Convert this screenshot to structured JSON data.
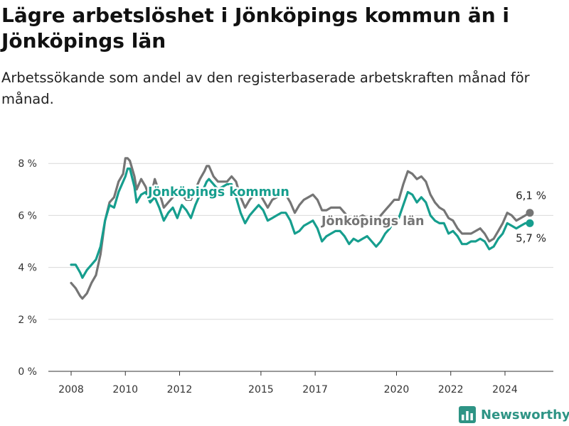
{
  "colors": {
    "kommun": "#169e8e",
    "lan": "#757575",
    "grid": "#d9d9d9",
    "axis": "#333333",
    "brand": "#2e9485"
  },
  "brand": {
    "name": "Newsworthy",
    "icon": "bar-chart-icon"
  },
  "chart_data": {
    "type": "line",
    "title": "Lägre arbetslöshet i Jönköpings kommun än i Jönköpings län",
    "subtitle": "Arbetssökande som andel av den registerbaserade arbetskraften månad för månad.",
    "xlabel": "",
    "ylabel": "",
    "xlim": [
      "2007-06",
      "2025-12"
    ],
    "ylim": [
      0,
      8.5
    ],
    "x_ticks": [
      {
        "date": "2008-01",
        "label": "2008"
      },
      {
        "date": "2010-01",
        "label": "2010"
      },
      {
        "date": "2012-01",
        "label": "2012"
      },
      {
        "date": "2015-01",
        "label": "2015"
      },
      {
        "date": "2017-01",
        "label": "2017"
      },
      {
        "date": "2020-01",
        "label": "2020"
      },
      {
        "date": "2022-01",
        "label": "2022"
      },
      {
        "date": "2024-01",
        "label": "2024"
      }
    ],
    "y_ticks": [
      {
        "value": 0,
        "label": "0 %"
      },
      {
        "value": 2,
        "label": "2 %"
      },
      {
        "value": 4,
        "label": "4 %"
      },
      {
        "value": 6,
        "label": "6 %"
      },
      {
        "value": 8,
        "label": "8 %"
      }
    ],
    "grid": true,
    "legend": "inline",
    "series": [
      {
        "name": "Jönköpings län",
        "label": "Jönköpings län",
        "color": "#757575",
        "end_label": "6,1 %",
        "points": [
          [
            "2008-01",
            3.4
          ],
          [
            "2008-03",
            3.2
          ],
          [
            "2008-05",
            2.9
          ],
          [
            "2008-06",
            2.8
          ],
          [
            "2008-08",
            3.0
          ],
          [
            "2008-10",
            3.4
          ],
          [
            "2008-12",
            3.7
          ],
          [
            "2009-02",
            4.5
          ],
          [
            "2009-04",
            5.8
          ],
          [
            "2009-06",
            6.5
          ],
          [
            "2009-08",
            6.7
          ],
          [
            "2009-10",
            7.3
          ],
          [
            "2009-12",
            7.6
          ],
          [
            "2010-01",
            8.2
          ],
          [
            "2010-02",
            8.2
          ],
          [
            "2010-03",
            8.1
          ],
          [
            "2010-05",
            7.5
          ],
          [
            "2010-06",
            7.0
          ],
          [
            "2010-08",
            7.4
          ],
          [
            "2010-10",
            7.1
          ],
          [
            "2010-12",
            6.6
          ],
          [
            "2011-02",
            7.4
          ],
          [
            "2011-04",
            6.9
          ],
          [
            "2011-06",
            6.3
          ],
          [
            "2011-08",
            6.5
          ],
          [
            "2011-10",
            6.7
          ],
          [
            "2011-12",
            6.9
          ],
          [
            "2012-02",
            6.8
          ],
          [
            "2012-04",
            6.6
          ],
          [
            "2012-06",
            6.6
          ],
          [
            "2012-08",
            7.0
          ],
          [
            "2012-10",
            7.4
          ],
          [
            "2012-12",
            7.7
          ],
          [
            "2013-01",
            7.9
          ],
          [
            "2013-02",
            7.9
          ],
          [
            "2013-04",
            7.5
          ],
          [
            "2013-06",
            7.3
          ],
          [
            "2013-08",
            7.3
          ],
          [
            "2013-10",
            7.3
          ],
          [
            "2013-12",
            7.5
          ],
          [
            "2014-02",
            7.3
          ],
          [
            "2014-04",
            6.7
          ],
          [
            "2014-06",
            6.3
          ],
          [
            "2014-08",
            6.6
          ],
          [
            "2014-10",
            6.8
          ],
          [
            "2014-12",
            6.9
          ],
          [
            "2015-02",
            6.6
          ],
          [
            "2015-04",
            6.3
          ],
          [
            "2015-06",
            6.6
          ],
          [
            "2015-08",
            6.7
          ],
          [
            "2015-10",
            6.8
          ],
          [
            "2015-12",
            6.8
          ],
          [
            "2016-02",
            6.5
          ],
          [
            "2016-04",
            6.1
          ],
          [
            "2016-06",
            6.4
          ],
          [
            "2016-08",
            6.6
          ],
          [
            "2016-10",
            6.7
          ],
          [
            "2016-12",
            6.8
          ],
          [
            "2017-02",
            6.6
          ],
          [
            "2017-04",
            6.2
          ],
          [
            "2017-06",
            6.2
          ],
          [
            "2017-08",
            6.3
          ],
          [
            "2017-10",
            6.3
          ],
          [
            "2017-12",
            6.3
          ],
          [
            "2018-02",
            6.1
          ],
          [
            "2018-04",
            5.9
          ],
          [
            "2018-06",
            5.8
          ],
          [
            "2018-08",
            5.9
          ],
          [
            "2018-10",
            6.0
          ],
          [
            "2018-12",
            5.9
          ],
          [
            "2019-02",
            5.8
          ],
          [
            "2019-04",
            5.7
          ],
          [
            "2019-06",
            6.0
          ],
          [
            "2019-08",
            6.2
          ],
          [
            "2019-10",
            6.4
          ],
          [
            "2019-12",
            6.6
          ],
          [
            "2020-02",
            6.6
          ],
          [
            "2020-04",
            7.2
          ],
          [
            "2020-06",
            7.7
          ],
          [
            "2020-08",
            7.6
          ],
          [
            "2020-10",
            7.4
          ],
          [
            "2020-12",
            7.5
          ],
          [
            "2021-02",
            7.3
          ],
          [
            "2021-04",
            6.8
          ],
          [
            "2021-06",
            6.5
          ],
          [
            "2021-08",
            6.3
          ],
          [
            "2021-10",
            6.2
          ],
          [
            "2021-12",
            5.9
          ],
          [
            "2022-02",
            5.8
          ],
          [
            "2022-04",
            5.5
          ],
          [
            "2022-06",
            5.3
          ],
          [
            "2022-08",
            5.3
          ],
          [
            "2022-10",
            5.3
          ],
          [
            "2022-12",
            5.4
          ],
          [
            "2023-02",
            5.5
          ],
          [
            "2023-04",
            5.3
          ],
          [
            "2023-06",
            5.0
          ],
          [
            "2023-08",
            5.1
          ],
          [
            "2023-10",
            5.4
          ],
          [
            "2023-12",
            5.7
          ],
          [
            "2024-02",
            6.1
          ],
          [
            "2024-04",
            6.0
          ],
          [
            "2024-06",
            5.8
          ],
          [
            "2024-08",
            5.9
          ],
          [
            "2024-10",
            6.0
          ],
          [
            "2024-12",
            6.1
          ]
        ]
      },
      {
        "name": "Jönköpings kommun",
        "label": "Jönköpings kommun",
        "color": "#169e8e",
        "end_label": "5,7 %",
        "points": [
          [
            "2008-01",
            4.1
          ],
          [
            "2008-03",
            4.1
          ],
          [
            "2008-05",
            3.8
          ],
          [
            "2008-06",
            3.6
          ],
          [
            "2008-08",
            3.9
          ],
          [
            "2008-10",
            4.1
          ],
          [
            "2008-12",
            4.3
          ],
          [
            "2009-02",
            4.8
          ],
          [
            "2009-04",
            5.8
          ],
          [
            "2009-06",
            6.4
          ],
          [
            "2009-08",
            6.3
          ],
          [
            "2009-10",
            6.9
          ],
          [
            "2009-12",
            7.3
          ],
          [
            "2010-01",
            7.5
          ],
          [
            "2010-02",
            7.8
          ],
          [
            "2010-03",
            7.8
          ],
          [
            "2010-05",
            7.1
          ],
          [
            "2010-06",
            6.5
          ],
          [
            "2010-08",
            6.8
          ],
          [
            "2010-10",
            6.9
          ],
          [
            "2010-12",
            6.5
          ],
          [
            "2011-02",
            6.7
          ],
          [
            "2011-04",
            6.3
          ],
          [
            "2011-06",
            5.8
          ],
          [
            "2011-08",
            6.1
          ],
          [
            "2011-10",
            6.3
          ],
          [
            "2011-12",
            5.9
          ],
          [
            "2012-02",
            6.4
          ],
          [
            "2012-04",
            6.2
          ],
          [
            "2012-06",
            5.9
          ],
          [
            "2012-08",
            6.4
          ],
          [
            "2012-10",
            6.8
          ],
          [
            "2012-12",
            7.1
          ],
          [
            "2013-01",
            7.3
          ],
          [
            "2013-02",
            7.4
          ],
          [
            "2013-04",
            7.2
          ],
          [
            "2013-06",
            7.0
          ],
          [
            "2013-08",
            7.1
          ],
          [
            "2013-10",
            7.2
          ],
          [
            "2013-12",
            7.2
          ],
          [
            "2014-02",
            6.7
          ],
          [
            "2014-04",
            6.1
          ],
          [
            "2014-06",
            5.7
          ],
          [
            "2014-08",
            6.0
          ],
          [
            "2014-10",
            6.2
          ],
          [
            "2014-12",
            6.4
          ],
          [
            "2015-02",
            6.2
          ],
          [
            "2015-04",
            5.8
          ],
          [
            "2015-06",
            5.9
          ],
          [
            "2015-08",
            6.0
          ],
          [
            "2015-10",
            6.1
          ],
          [
            "2015-12",
            6.1
          ],
          [
            "2016-02",
            5.8
          ],
          [
            "2016-04",
            5.3
          ],
          [
            "2016-06",
            5.4
          ],
          [
            "2016-08",
            5.6
          ],
          [
            "2016-10",
            5.7
          ],
          [
            "2016-12",
            5.8
          ],
          [
            "2017-02",
            5.5
          ],
          [
            "2017-04",
            5.0
          ],
          [
            "2017-06",
            5.2
          ],
          [
            "2017-08",
            5.3
          ],
          [
            "2017-10",
            5.4
          ],
          [
            "2017-12",
            5.4
          ],
          [
            "2018-02",
            5.2
          ],
          [
            "2018-04",
            4.9
          ],
          [
            "2018-06",
            5.1
          ],
          [
            "2018-08",
            5.0
          ],
          [
            "2018-10",
            5.1
          ],
          [
            "2018-12",
            5.2
          ],
          [
            "2019-02",
            5.0
          ],
          [
            "2019-04",
            4.8
          ],
          [
            "2019-06",
            5.0
          ],
          [
            "2019-08",
            5.3
          ],
          [
            "2019-10",
            5.5
          ],
          [
            "2019-12",
            5.8
          ],
          [
            "2020-02",
            5.9
          ],
          [
            "2020-04",
            6.4
          ],
          [
            "2020-06",
            6.9
          ],
          [
            "2020-08",
            6.8
          ],
          [
            "2020-10",
            6.5
          ],
          [
            "2020-12",
            6.7
          ],
          [
            "2021-02",
            6.5
          ],
          [
            "2021-04",
            6.0
          ],
          [
            "2021-06",
            5.8
          ],
          [
            "2021-08",
            5.7
          ],
          [
            "2021-10",
            5.7
          ],
          [
            "2021-12",
            5.3
          ],
          [
            "2022-02",
            5.4
          ],
          [
            "2022-04",
            5.2
          ],
          [
            "2022-06",
            4.9
          ],
          [
            "2022-08",
            4.9
          ],
          [
            "2022-10",
            5.0
          ],
          [
            "2022-12",
            5.0
          ],
          [
            "2023-02",
            5.1
          ],
          [
            "2023-04",
            5.0
          ],
          [
            "2023-06",
            4.7
          ],
          [
            "2023-08",
            4.8
          ],
          [
            "2023-10",
            5.1
          ],
          [
            "2023-12",
            5.3
          ],
          [
            "2024-02",
            5.7
          ],
          [
            "2024-04",
            5.6
          ],
          [
            "2024-06",
            5.5
          ],
          [
            "2024-08",
            5.6
          ],
          [
            "2024-10",
            5.7
          ],
          [
            "2024-12",
            5.7
          ]
        ]
      }
    ]
  }
}
